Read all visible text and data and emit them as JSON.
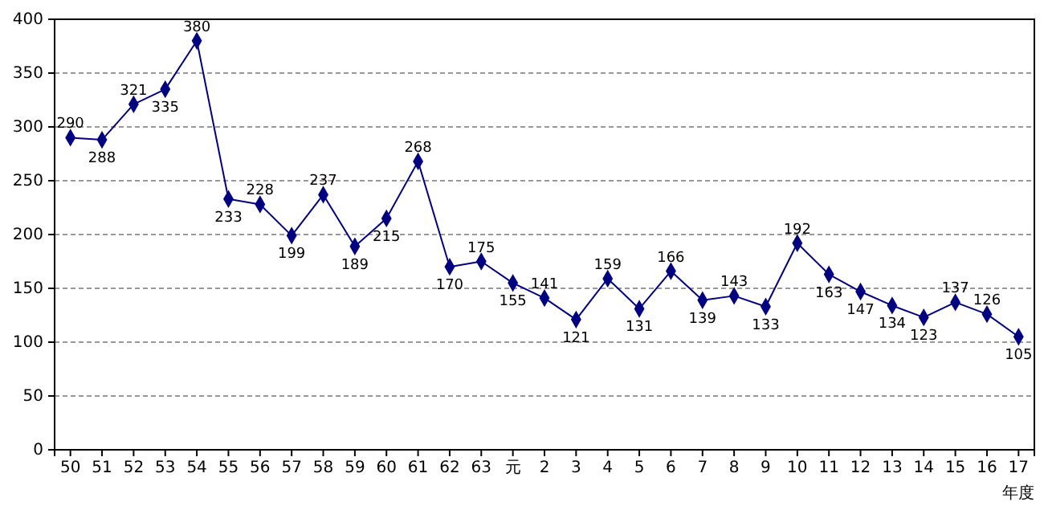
{
  "chart_data": {
    "type": "line",
    "xlabel": "年度",
    "categories": [
      "50",
      "51",
      "52",
      "53",
      "54",
      "55",
      "56",
      "57",
      "58",
      "59",
      "60",
      "61",
      "62",
      "63",
      "元",
      "2",
      "3",
      "4",
      "5",
      "6",
      "7",
      "8",
      "9",
      "10",
      "11",
      "12",
      "13",
      "14",
      "15",
      "16",
      "17"
    ],
    "series": [
      {
        "color": "#000080",
        "values": [
          290,
          288,
          321,
          335,
          380,
          233,
          228,
          199,
          237,
          189,
          215,
          268,
          170,
          175,
          155,
          141,
          121,
          159,
          131,
          166,
          139,
          143,
          133,
          192,
          163,
          147,
          134,
          123,
          137,
          126,
          105
        ]
      }
    ],
    "ylim": [
      0,
      400
    ],
    "yticks": [
      0,
      50,
      100,
      150,
      200,
      250,
      300,
      350,
      400
    ],
    "grid": "y",
    "marker": "diamond",
    "line_style": "solid",
    "data_labels": true
  }
}
